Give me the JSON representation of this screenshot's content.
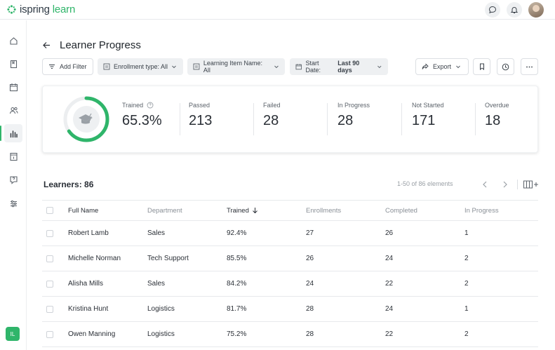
{
  "app": {
    "logo_prefix": "ispring",
    "logo_suffix": "learn",
    "brand_color": "#2fb56a",
    "user_initials": "IL"
  },
  "page": {
    "title": "Learner Progress"
  },
  "toolbar": {
    "add_filter": "Add Filter",
    "enrollment_type": "Enrollment type: All",
    "learning_item": "Learning Item Name: All",
    "start_date_label": "Start Date:",
    "start_date_value": "Last 90 days",
    "export": "Export"
  },
  "stats": {
    "trained_label": "Trained",
    "trained_value": "65.3%",
    "trained_fraction": 0.653,
    "passed_label": "Passed",
    "passed_value": "213",
    "failed_label": "Failed",
    "failed_value": "28",
    "in_progress_label": "In Progress",
    "in_progress_value": "28",
    "not_started_label": "Not Started",
    "not_started_value": "171",
    "overdue_label": "Overdue",
    "overdue_value": "18"
  },
  "learners": {
    "title": "Learners: 86",
    "pagination": "1-50 of 86 elements",
    "columns": [
      "Full Name",
      "Department",
      "Trained",
      "Enrollments",
      "Completed",
      "In Progress"
    ],
    "rows": [
      [
        "Robert Lamb",
        "Sales",
        "92.4%",
        "27",
        "26",
        "1"
      ],
      [
        "Michelle Norman",
        "Tech Support",
        "85.5%",
        "26",
        "24",
        "2"
      ],
      [
        "Alisha Mills",
        "Sales",
        "84.2%",
        "24",
        "22",
        "2"
      ],
      [
        "Kristina Hunt",
        "Logistics",
        "81.7%",
        "28",
        "24",
        "1"
      ],
      [
        "Owen Manning",
        "Logistics",
        "75.2%",
        "28",
        "22",
        "2"
      ]
    ]
  }
}
